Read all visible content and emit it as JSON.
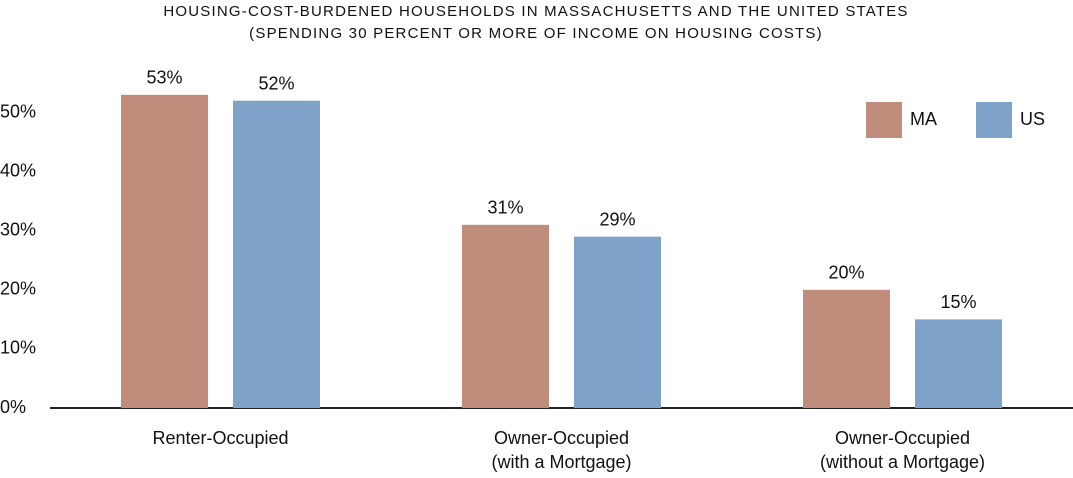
{
  "chart_data": {
    "type": "bar",
    "title": "HOUSING-COST-BURDENED HOUSEHOLDS IN MASSACHUSETTS AND THE UNITED STATES",
    "subtitle": "(SPENDING 30 PERCENT OR MORE OF INCOME ON HOUSING COSTS)",
    "categories": [
      "Renter-Occupied",
      "Owner-Occupied\n(with a Mortgage)",
      "Owner-Occupied\n(without a Mortgage)"
    ],
    "series": [
      {
        "name": "MA",
        "color": "#c08c7c",
        "values": [
          53,
          31,
          20
        ],
        "value_labels": [
          "53%",
          "31%",
          "20%"
        ]
      },
      {
        "name": "US",
        "color": "#7fa3c8",
        "values": [
          52,
          29,
          15
        ],
        "value_labels": [
          "52%",
          "29%",
          "15%"
        ]
      }
    ],
    "ylim": [
      0,
      55
    ],
    "yticks": [
      {
        "value": 0,
        "label": "0%"
      },
      {
        "value": 10,
        "label": "10%"
      },
      {
        "value": 20,
        "label": "20%"
      },
      {
        "value": 30,
        "label": "30%"
      },
      {
        "value": 40,
        "label": "40%"
      },
      {
        "value": 50,
        "label": "50%"
      }
    ],
    "legend": "top-right"
  }
}
